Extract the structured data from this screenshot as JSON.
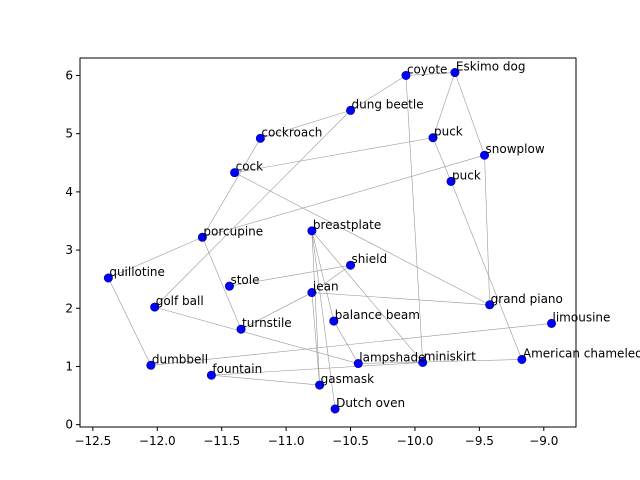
{
  "chart_data": {
    "type": "scatter",
    "title": "",
    "xlabel": "",
    "ylabel": "",
    "xlim": [
      -12.6,
      -8.75
    ],
    "ylim": [
      -0.04,
      6.3
    ],
    "xticks": [
      -12.5,
      -12.0,
      -11.5,
      -11.0,
      -10.5,
      -10.0,
      -9.5,
      -9.0
    ],
    "xtick_labels": [
      "−12.5",
      "−12.0",
      "−11.5",
      "−11.0",
      "−10.5",
      "−10.0",
      "−9.5",
      "−9.0"
    ],
    "yticks": [
      0,
      1,
      2,
      3,
      4,
      5,
      6
    ],
    "ytick_labels": [
      "0",
      "1",
      "2",
      "3",
      "4",
      "5",
      "6"
    ],
    "grid": false,
    "point_color": "#0000ff",
    "edge_color": "#999999",
    "points": [
      {
        "label": "coyote",
        "x": -10.07,
        "y": 6.0
      },
      {
        "label": "Eskimo dog",
        "x": -9.69,
        "y": 6.05
      },
      {
        "label": "dung beetle",
        "x": -10.5,
        "y": 5.4
      },
      {
        "label": "cockroach",
        "x": -11.2,
        "y": 4.92
      },
      {
        "label": "puck",
        "x": -9.86,
        "y": 4.93
      },
      {
        "label": "snowplow",
        "x": -9.46,
        "y": 4.63
      },
      {
        "label": "cock",
        "x": -11.4,
        "y": 4.33
      },
      {
        "label": "puck",
        "x": -9.72,
        "y": 4.18
      },
      {
        "label": "breastplate",
        "x": -10.8,
        "y": 3.33
      },
      {
        "label": "porcupine",
        "x": -11.65,
        "y": 3.22
      },
      {
        "label": "shield",
        "x": -10.5,
        "y": 2.74
      },
      {
        "label": "quillotine",
        "x": -12.38,
        "y": 2.52
      },
      {
        "label": "stole",
        "x": -11.44,
        "y": 2.38
      },
      {
        "label": "jean",
        "x": -10.8,
        "y": 2.27
      },
      {
        "label": "grand piano",
        "x": -9.42,
        "y": 2.06
      },
      {
        "label": "golf ball",
        "x": -12.02,
        "y": 2.02
      },
      {
        "label": "balance beam",
        "x": -10.63,
        "y": 1.78
      },
      {
        "label": "limousine",
        "x": -8.94,
        "y": 1.74
      },
      {
        "label": "turnstile",
        "x": -11.35,
        "y": 1.64
      },
      {
        "label": "American chameleon",
        "x": -9.17,
        "y": 1.12
      },
      {
        "label": "miniskirt",
        "x": -9.94,
        "y": 1.07
      },
      {
        "label": "lampshade",
        "x": -10.44,
        "y": 1.05
      },
      {
        "label": "dumbbell",
        "x": -12.05,
        "y": 1.02
      },
      {
        "label": "fountain",
        "x": -11.58,
        "y": 0.85
      },
      {
        "label": "gasmask",
        "x": -10.74,
        "y": 0.68
      },
      {
        "label": "Dutch oven",
        "x": -10.62,
        "y": 0.27
      }
    ],
    "edges": [
      [
        0,
        1
      ],
      [
        0,
        20
      ],
      [
        1,
        5
      ],
      [
        2,
        0
      ],
      [
        2,
        15
      ],
      [
        3,
        2
      ],
      [
        3,
        9
      ],
      [
        9,
        18
      ],
      [
        5,
        9
      ],
      [
        4,
        1
      ],
      [
        4,
        7
      ],
      [
        7,
        19
      ],
      [
        6,
        4
      ],
      [
        6,
        14
      ],
      [
        14,
        5
      ],
      [
        8,
        25
      ],
      [
        8,
        24
      ],
      [
        8,
        20
      ],
      [
        11,
        9
      ],
      [
        11,
        22
      ],
      [
        22,
        17
      ],
      [
        12,
        10
      ],
      [
        13,
        10
      ],
      [
        13,
        18
      ],
      [
        13,
        14
      ],
      [
        15,
        21
      ],
      [
        16,
        8
      ],
      [
        19,
        21
      ],
      [
        23,
        24
      ],
      [
        23,
        20
      ],
      [
        24,
        13
      ],
      [
        21,
        16
      ]
    ]
  }
}
